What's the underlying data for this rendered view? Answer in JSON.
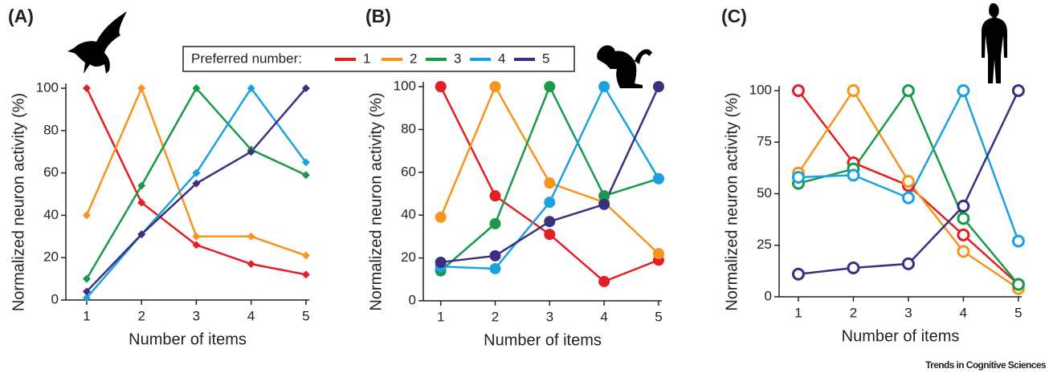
{
  "source": "Trends in Cognitive Sciences",
  "chart_data": [
    {
      "type": "line",
      "panel_label": "(A)",
      "legend_title": "Preferred number:",
      "xlabel": "Number of items",
      "ylabel": "Normalized neuron activity (%)",
      "x": [
        1,
        2,
        3,
        4,
        5
      ],
      "xlim": [
        0.62,
        5.06
      ],
      "xticks": [
        1,
        2,
        3,
        4,
        5
      ],
      "ylim": [
        0,
        100
      ],
      "yticks": [
        0,
        20,
        40,
        60,
        80,
        100
      ],
      "marker": "diamond",
      "series": [
        {
          "name": "1",
          "color": "#e31e24",
          "values": [
            100,
            46,
            26,
            17,
            12
          ]
        },
        {
          "name": "2",
          "color": "#f7941d",
          "values": [
            40,
            100,
            30,
            30,
            21
          ]
        },
        {
          "name": "3",
          "color": "#1a9a48",
          "values": [
            10,
            54,
            100,
            71,
            59
          ]
        },
        {
          "name": "4",
          "color": "#1ba1e2",
          "values": [
            1,
            31,
            60,
            100,
            65
          ]
        },
        {
          "name": "5",
          "color": "#3a2f80",
          "values": [
            4,
            31,
            55,
            70,
            100
          ]
        }
      ]
    },
    {
      "type": "line",
      "panel_label": "(B)",
      "xlabel": "Number of items",
      "ylabel": "Normalized neuron activity (%)",
      "x": [
        1,
        2,
        3,
        4,
        5
      ],
      "xlim": [
        0.68,
        5.06
      ],
      "xticks": [
        1,
        2,
        3,
        4,
        5
      ],
      "ylim": [
        0,
        100
      ],
      "yticks": [
        0,
        20,
        40,
        60,
        80,
        100
      ],
      "marker": "circle",
      "series": [
        {
          "name": "1",
          "color": "#e31e24",
          "values": [
            100,
            49,
            31,
            9,
            19
          ]
        },
        {
          "name": "2",
          "color": "#f7941d",
          "values": [
            39,
            100,
            55,
            46,
            22
          ]
        },
        {
          "name": "3",
          "color": "#1a9a48",
          "values": [
            14,
            36,
            100,
            49,
            57
          ]
        },
        {
          "name": "4",
          "color": "#1ba1e2",
          "values": [
            16,
            15,
            46,
            100,
            57
          ]
        },
        {
          "name": "5",
          "color": "#3a2f80",
          "values": [
            18,
            21,
            37,
            45,
            100
          ]
        }
      ]
    },
    {
      "type": "line",
      "panel_label": "(C)",
      "xlabel": "Number of items",
      "ylabel": "Normalized neuron activity (%)",
      "x": [
        1,
        2,
        3,
        4,
        5
      ],
      "xlim": [
        0.65,
        5.06
      ],
      "xticks": [
        1,
        2,
        3,
        4,
        5
      ],
      "ylim": [
        0,
        100
      ],
      "yticks": [
        0,
        25,
        50,
        75,
        100
      ],
      "marker": "open-circle",
      "series": [
        {
          "name": "1",
          "color": "#e31e24",
          "values": [
            100,
            65,
            54,
            30,
            6
          ]
        },
        {
          "name": "2",
          "color": "#f7941d",
          "values": [
            60,
            100,
            56,
            22,
            4
          ]
        },
        {
          "name": "3",
          "color": "#1a9a48",
          "values": [
            55,
            62,
            100,
            38,
            6
          ]
        },
        {
          "name": "4",
          "color": "#1ba1e2",
          "values": [
            58,
            59,
            48,
            100,
            27
          ]
        },
        {
          "name": "5",
          "color": "#3a2f80",
          "values": [
            11,
            14,
            16,
            44,
            100
          ]
        }
      ]
    }
  ]
}
